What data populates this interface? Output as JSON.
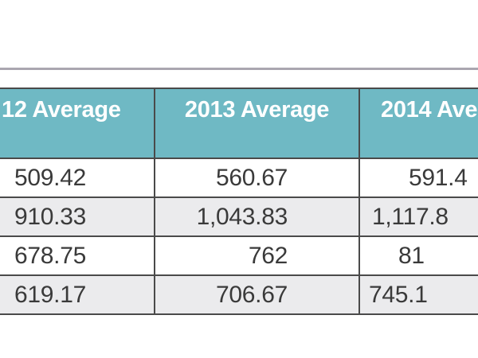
{
  "page": {
    "background": "#ffffff",
    "divider_color": "#aaa6b0"
  },
  "table": {
    "style": {
      "header_bg": "#6fb9c4",
      "header_text_color": "#ffffff",
      "row_bg": "#ffffff",
      "alt_row_bg": "#ebebed",
      "border_color": "#4a4a4a",
      "cell_text_color": "#3a3a3a"
    },
    "columns": [
      "12 Average",
      "2013 Average",
      "2014 Ave"
    ],
    "rows": [
      [
        "509.42",
        "560.67",
        "591.4"
      ],
      [
        "910.33",
        "1,043.83",
        "1,117.8"
      ],
      [
        "678.75",
        "762",
        "81"
      ],
      [
        "619.17",
        "706.67",
        "745.1"
      ]
    ]
  },
  "chart_data": {
    "type": "table",
    "title": "",
    "categories": [
      "12 Average",
      "2013 Average",
      "2014 Ave"
    ],
    "rows": [
      [
        "509.42",
        "560.67",
        "591.4"
      ],
      [
        "910.33",
        "1,043.83",
        "1,117.8"
      ],
      [
        "678.75",
        "762",
        "81"
      ],
      [
        "619.17",
        "706.67",
        "745.1"
      ]
    ],
    "layout_hints": {
      "cropped_left": true,
      "cropped_right": true,
      "header_fill": "#6fb9c4",
      "alternating_row_shading": true,
      "grid": true
    }
  }
}
